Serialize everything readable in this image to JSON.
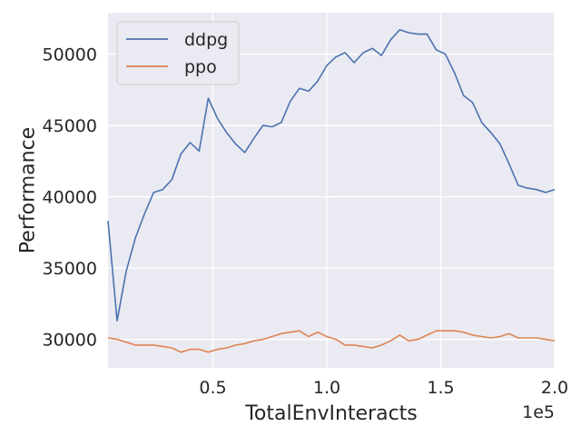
{
  "chart_data": {
    "type": "line",
    "title": "",
    "xlabel": "TotalEnvInteracts",
    "ylabel": "Performance",
    "x_offset_label": "1e5",
    "xlim": [
      4000,
      200000
    ],
    "ylim": [
      28000,
      52900
    ],
    "grid": true,
    "legend_position": "top-left",
    "x_ticks": [
      {
        "value": 50000,
        "label": "0.5"
      },
      {
        "value": 100000,
        "label": "1.0"
      },
      {
        "value": 150000,
        "label": "1.5"
      },
      {
        "value": 200000,
        "label": "2.0"
      }
    ],
    "y_ticks": [
      {
        "value": 30000,
        "label": "30000"
      },
      {
        "value": 35000,
        "label": "35000"
      },
      {
        "value": 40000,
        "label": "40000"
      },
      {
        "value": 45000,
        "label": "45000"
      },
      {
        "value": 50000,
        "label": "50000"
      }
    ],
    "x": [
      4000,
      8000,
      12000,
      16000,
      20000,
      24000,
      28000,
      32000,
      36000,
      40000,
      44000,
      48000,
      52000,
      56000,
      60000,
      64000,
      68000,
      72000,
      76000,
      80000,
      84000,
      88000,
      92000,
      96000,
      100000,
      104000,
      108000,
      112000,
      116000,
      120000,
      124000,
      128000,
      132000,
      136000,
      140000,
      144000,
      148000,
      152000,
      156000,
      160000,
      164000,
      168000,
      172000,
      176000,
      180000,
      184000,
      188000,
      192000,
      196000,
      200000
    ],
    "series": [
      {
        "name": "ddpg",
        "color": "#4c72b0",
        "values": [
          38300,
          31300,
          34800,
          37100,
          38800,
          40300,
          40500,
          41200,
          43000,
          43800,
          43200,
          46900,
          45500,
          44500,
          43700,
          43100,
          44100,
          45000,
          44900,
          45200,
          46700,
          47600,
          47400,
          48100,
          49200,
          49800,
          50100,
          49400,
          50100,
          50400,
          49900,
          51000,
          51700,
          51500,
          51400,
          51400,
          50300,
          50000,
          48700,
          47100,
          46600,
          45200,
          44500,
          43700,
          42300,
          40800,
          40600,
          40500,
          40300,
          40500
        ]
      },
      {
        "name": "ppo",
        "color": "#dd8452",
        "values": [
          30100,
          30000,
          29800,
          29600,
          29600,
          29600,
          29500,
          29400,
          29100,
          29300,
          29300,
          29100,
          29300,
          29400,
          29600,
          29700,
          29900,
          30000,
          30200,
          30400,
          30500,
          30600,
          30200,
          30500,
          30200,
          30000,
          29600,
          29600,
          29500,
          29400,
          29600,
          29900,
          30300,
          29900,
          30000,
          30300,
          30600,
          30600,
          30600,
          30500,
          30300,
          30200,
          30100,
          30200,
          30400,
          30100,
          30100,
          30100,
          30000,
          29900
        ]
      }
    ]
  }
}
